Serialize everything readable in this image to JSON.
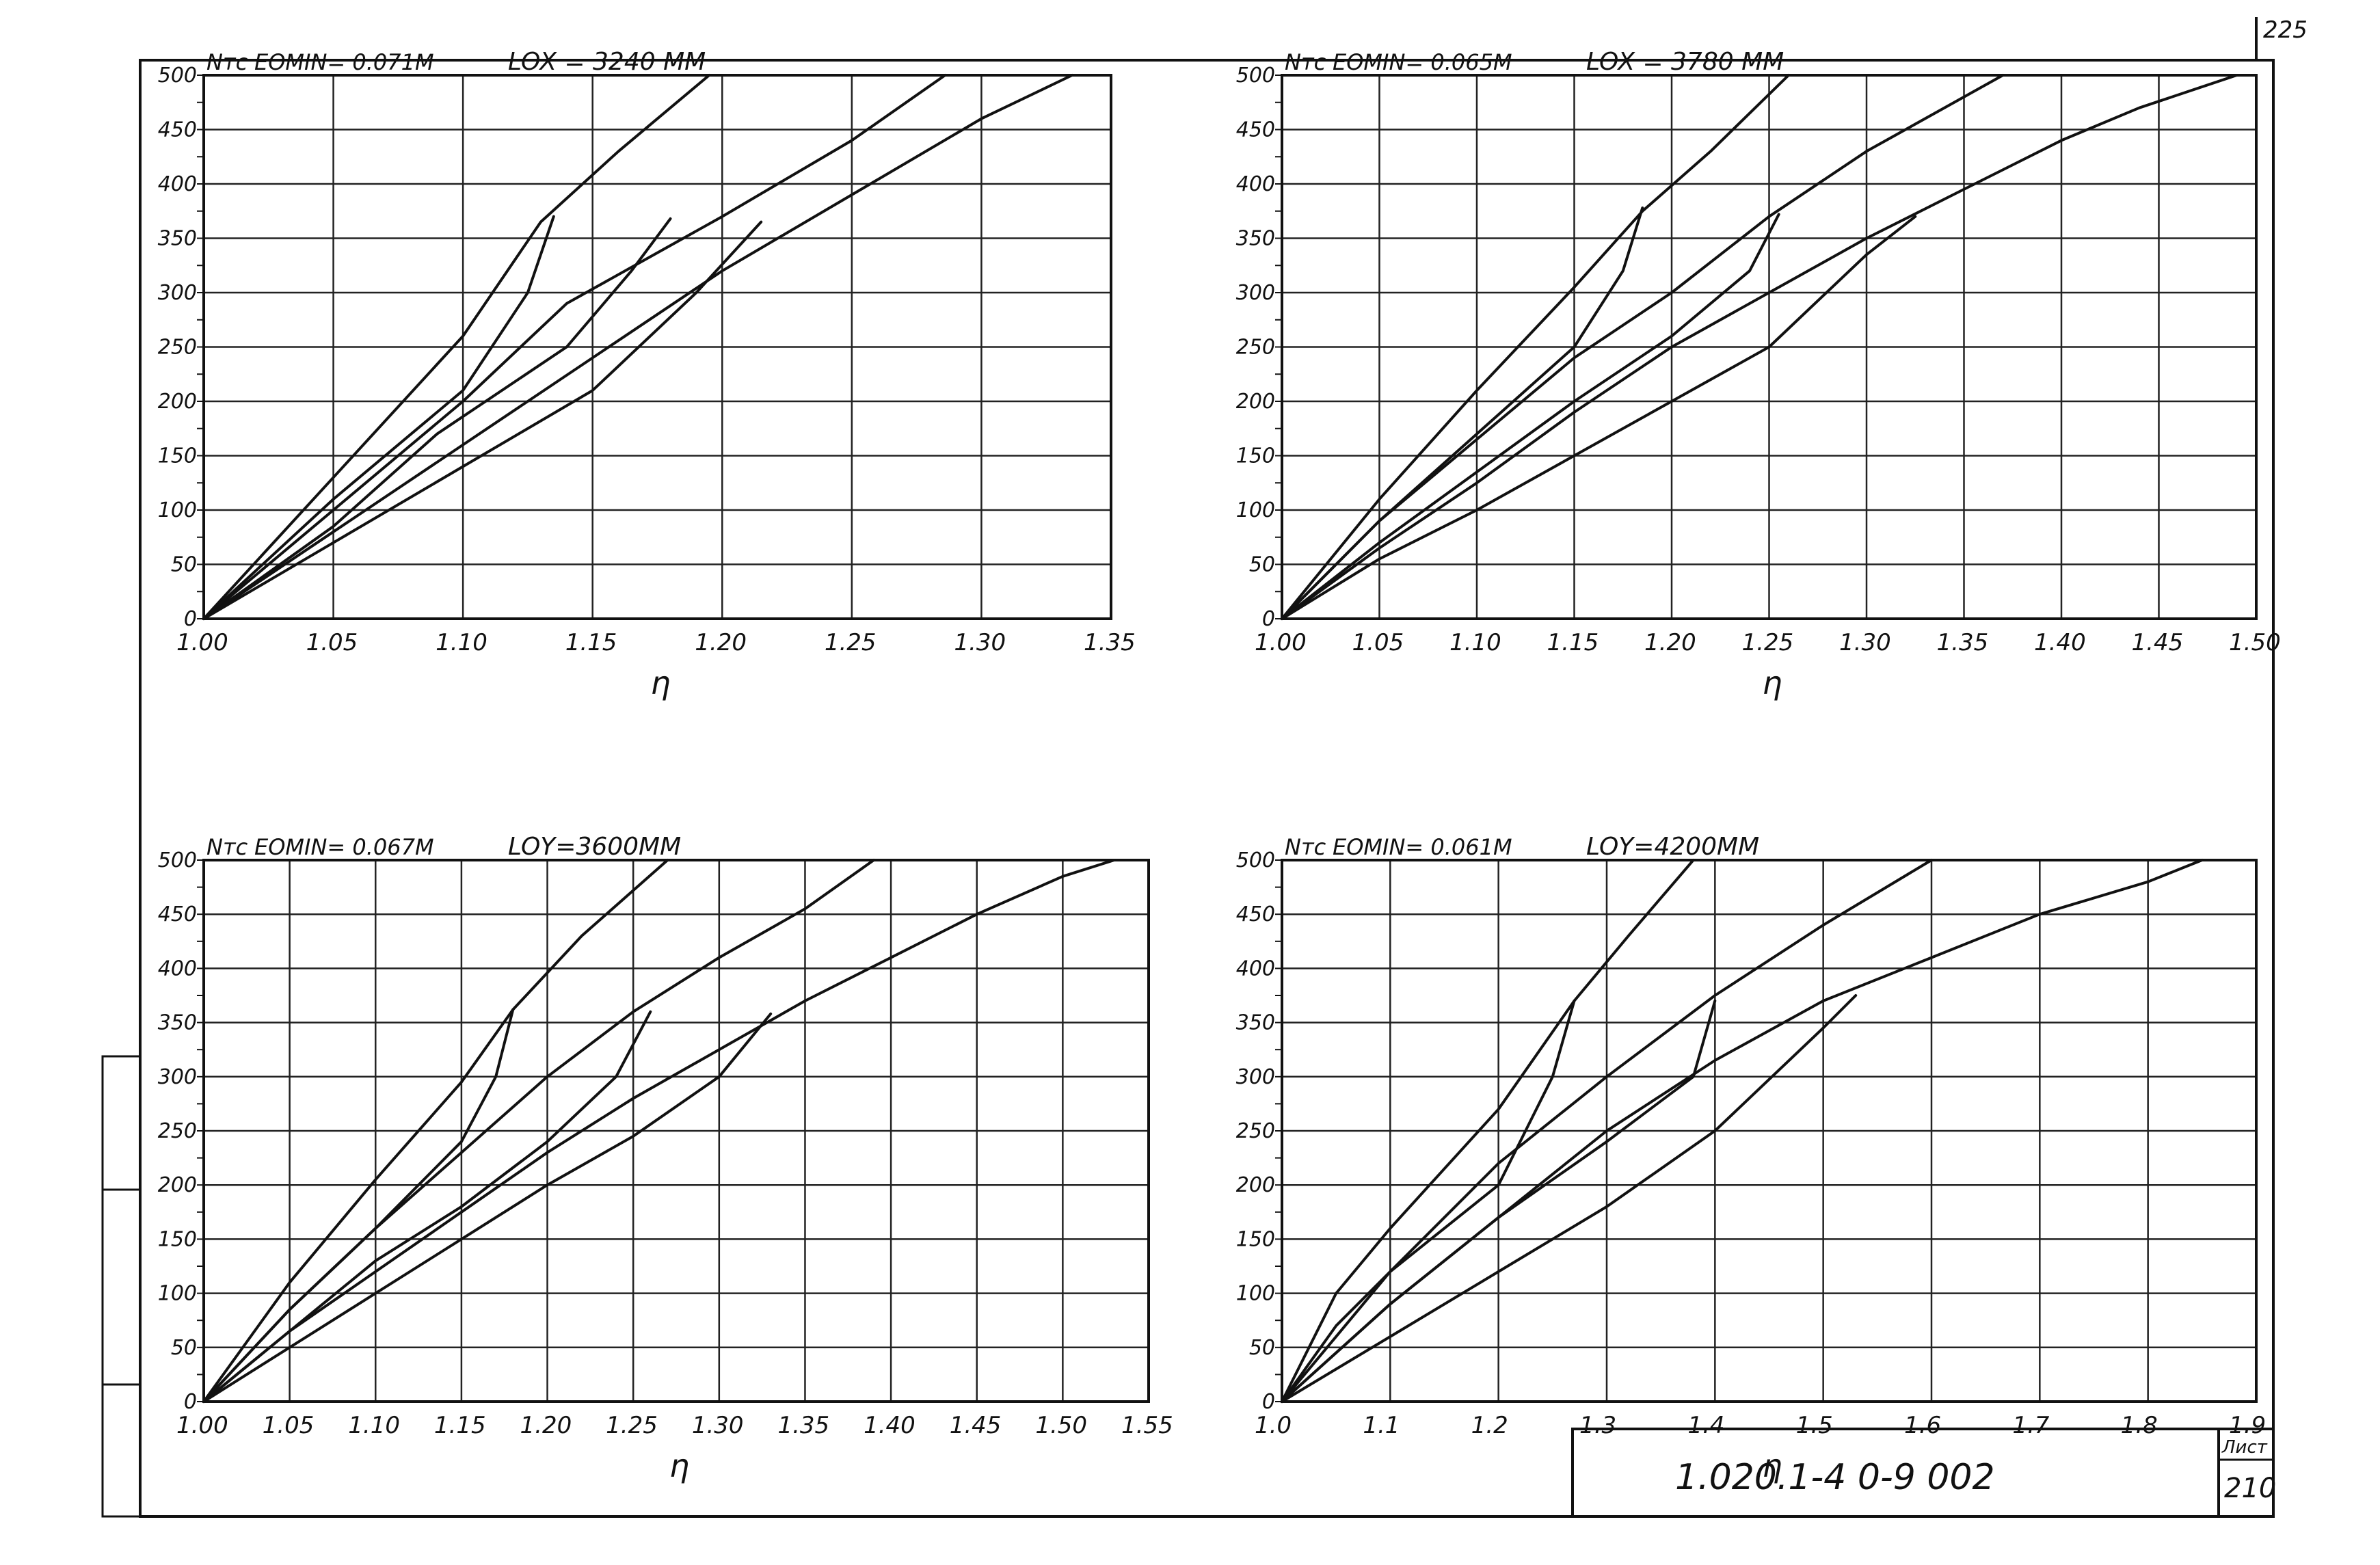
{
  "page_number_top": "225",
  "title_block": {
    "designation": "1.020.1-4  0-9  002",
    "sheet_label": "Лист",
    "sheet_number": "210"
  },
  "chart_data": [
    {
      "type": "line",
      "ylabel": "Nтс",
      "header_e": "EOMIN= 0.071M",
      "header_l": "LOX = 3240 MM",
      "xlabel": "η",
      "xlim": [
        1.0,
        1.35
      ],
      "ylim": [
        0,
        500
      ],
      "x_ticks": [
        1.0,
        1.05,
        1.1,
        1.15,
        1.2,
        1.25,
        1.3,
        1.35
      ],
      "x_tick_labels": [
        "1.00",
        "1.05",
        "1.10",
        "1.15",
        "1.20",
        "1.25",
        "1.30",
        "1.35"
      ],
      "y_ticks": [
        0,
        50,
        100,
        150,
        200,
        250,
        300,
        350,
        400,
        450,
        500
      ],
      "y_tick_labels": [
        "0",
        "50",
        "100",
        "150",
        "200",
        "250",
        "300",
        "350",
        "400",
        "450",
        "500"
      ],
      "series": [
        {
          "points": [
            [
              1.0,
              0
            ],
            [
              1.05,
              130
            ],
            [
              1.1,
              260
            ],
            [
              1.13,
              365
            ],
            [
              1.16,
              430
            ],
            [
              1.195,
              500
            ]
          ]
        },
        {
          "points": [
            [
              1.0,
              0
            ],
            [
              1.05,
              100
            ],
            [
              1.1,
              200
            ],
            [
              1.14,
              290
            ],
            [
              1.2,
              370
            ],
            [
              1.25,
              440
            ],
            [
              1.286,
              500
            ]
          ]
        },
        {
          "points": [
            [
              1.0,
              0
            ],
            [
              1.05,
              80
            ],
            [
              1.1,
              160
            ],
            [
              1.15,
              240
            ],
            [
              1.2,
              320
            ],
            [
              1.25,
              390
            ],
            [
              1.3,
              460
            ],
            [
              1.335,
              500
            ]
          ]
        },
        {
          "points": [
            [
              1.0,
              0
            ],
            [
              1.05,
              70
            ],
            [
              1.1,
              140
            ],
            [
              1.15,
              210
            ],
            [
              1.19,
              300
            ],
            [
              1.215,
              365
            ]
          ]
        },
        {
          "points": [
            [
              1.0,
              0
            ],
            [
              1.05,
              85
            ],
            [
              1.09,
              170
            ],
            [
              1.14,
              250
            ],
            [
              1.165,
              320
            ],
            [
              1.18,
              368
            ]
          ]
        },
        {
          "points": [
            [
              1.0,
              0
            ],
            [
              1.05,
              110
            ],
            [
              1.1,
              210
            ],
            [
              1.125,
              300
            ],
            [
              1.135,
              370
            ]
          ]
        }
      ]
    },
    {
      "type": "line",
      "ylabel": "Nтс",
      "header_e": "EOMIN= 0.065M",
      "header_l": "LOX = 3780 MM",
      "xlabel": "η",
      "xlim": [
        1.0,
        1.5
      ],
      "ylim": [
        0,
        500
      ],
      "x_ticks": [
        1.0,
        1.05,
        1.1,
        1.15,
        1.2,
        1.25,
        1.3,
        1.35,
        1.4,
        1.45,
        1.5
      ],
      "x_tick_labels": [
        "1.00",
        "1.05",
        "1.10",
        "1.15",
        "1.20",
        "1.25",
        "1.30",
        "1.35",
        "1.40",
        "1.45",
        "1.50"
      ],
      "y_ticks": [
        0,
        50,
        100,
        150,
        200,
        250,
        300,
        350,
        400,
        450,
        500
      ],
      "y_tick_labels": [
        "0",
        "50",
        "100",
        "150",
        "200",
        "250",
        "300",
        "350",
        "400",
        "450",
        "500"
      ],
      "series": [
        {
          "points": [
            [
              1.0,
              0
            ],
            [
              1.05,
              110
            ],
            [
              1.1,
              210
            ],
            [
              1.15,
              305
            ],
            [
              1.185,
              375
            ],
            [
              1.22,
              430
            ],
            [
              1.26,
              500
            ]
          ]
        },
        {
          "points": [
            [
              1.0,
              0
            ],
            [
              1.05,
              90
            ],
            [
              1.1,
              165
            ],
            [
              1.15,
              240
            ],
            [
              1.2,
              300
            ],
            [
              1.25,
              370
            ],
            [
              1.3,
              430
            ],
            [
              1.37,
              500
            ]
          ]
        },
        {
          "points": [
            [
              1.0,
              0
            ],
            [
              1.05,
              65
            ],
            [
              1.1,
              125
            ],
            [
              1.15,
              190
            ],
            [
              1.2,
              250
            ],
            [
              1.25,
              300
            ],
            [
              1.3,
              350
            ],
            [
              1.35,
              395
            ],
            [
              1.4,
              440
            ],
            [
              1.44,
              470
            ],
            [
              1.49,
              500
            ]
          ]
        },
        {
          "points": [
            [
              1.0,
              0
            ],
            [
              1.05,
              55
            ],
            [
              1.1,
              100
            ],
            [
              1.15,
              150
            ],
            [
              1.2,
              200
            ],
            [
              1.25,
              250
            ],
            [
              1.3,
              335
            ],
            [
              1.325,
              370
            ]
          ]
        },
        {
          "points": [
            [
              1.0,
              0
            ],
            [
              1.05,
              70
            ],
            [
              1.1,
              135
            ],
            [
              1.15,
              200
            ],
            [
              1.2,
              260
            ],
            [
              1.24,
              320
            ],
            [
              1.255,
              372
            ]
          ]
        },
        {
          "points": [
            [
              1.0,
              0
            ],
            [
              1.05,
              90
            ],
            [
              1.1,
              170
            ],
            [
              1.15,
              250
            ],
            [
              1.175,
              320
            ],
            [
              1.185,
              378
            ]
          ]
        }
      ]
    },
    {
      "type": "line",
      "ylabel": "Nтс",
      "header_e": "EOMIN= 0.067M",
      "header_l": "LOY=3600MM",
      "xlabel": "η",
      "xlim": [
        1.0,
        1.55
      ],
      "ylim": [
        0,
        500
      ],
      "x_ticks": [
        1.0,
        1.05,
        1.1,
        1.15,
        1.2,
        1.25,
        1.3,
        1.35,
        1.4,
        1.45,
        1.5,
        1.55
      ],
      "x_tick_labels": [
        "1.00",
        "1.05",
        "1.10",
        "1.15",
        "1.20",
        "1.25",
        "1.30",
        "1.35",
        "1.40",
        "1.45",
        "1.50",
        "1.55"
      ],
      "y_ticks": [
        0,
        50,
        100,
        150,
        200,
        250,
        300,
        350,
        400,
        450,
        500
      ],
      "y_tick_labels": [
        "0",
        "50",
        "100",
        "150",
        "200",
        "250",
        "300",
        "350",
        "400",
        "450",
        "500"
      ],
      "series": [
        {
          "points": [
            [
              1.0,
              0
            ],
            [
              1.05,
              110
            ],
            [
              1.1,
              205
            ],
            [
              1.15,
              295
            ],
            [
              1.18,
              362
            ],
            [
              1.22,
              430
            ],
            [
              1.27,
              500
            ]
          ]
        },
        {
          "points": [
            [
              1.0,
              0
            ],
            [
              1.05,
              85
            ],
            [
              1.1,
              160
            ],
            [
              1.15,
              230
            ],
            [
              1.2,
              300
            ],
            [
              1.25,
              360
            ],
            [
              1.3,
              410
            ],
            [
              1.35,
              455
            ],
            [
              1.39,
              500
            ]
          ]
        },
        {
          "points": [
            [
              1.0,
              0
            ],
            [
              1.05,
              65
            ],
            [
              1.1,
              120
            ],
            [
              1.15,
              175
            ],
            [
              1.2,
              230
            ],
            [
              1.25,
              280
            ],
            [
              1.3,
              325
            ],
            [
              1.35,
              370
            ],
            [
              1.4,
              410
            ],
            [
              1.45,
              450
            ],
            [
              1.5,
              485
            ],
            [
              1.53,
              500
            ]
          ]
        },
        {
          "points": [
            [
              1.0,
              0
            ],
            [
              1.05,
              50
            ],
            [
              1.1,
              100
            ],
            [
              1.15,
              150
            ],
            [
              1.2,
              200
            ],
            [
              1.25,
              245
            ],
            [
              1.3,
              300
            ],
            [
              1.33,
              358
            ]
          ]
        },
        {
          "points": [
            [
              1.0,
              0
            ],
            [
              1.05,
              65
            ],
            [
              1.1,
              130
            ],
            [
              1.15,
              180
            ],
            [
              1.2,
              240
            ],
            [
              1.24,
              300
            ],
            [
              1.26,
              360
            ]
          ]
        },
        {
          "points": [
            [
              1.0,
              0
            ],
            [
              1.05,
              85
            ],
            [
              1.1,
              160
            ],
            [
              1.15,
              240
            ],
            [
              1.17,
              300
            ],
            [
              1.18,
              362
            ]
          ]
        }
      ]
    },
    {
      "type": "line",
      "ylabel": "Nтс",
      "header_e": "EOMIN= 0.061M",
      "header_l": "LOY=4200MM",
      "xlabel": "η",
      "xlim": [
        1.0,
        1.9
      ],
      "ylim": [
        0,
        500
      ],
      "x_ticks": [
        1.0,
        1.1,
        1.2,
        1.3,
        1.4,
        1.5,
        1.6,
        1.7,
        1.8,
        1.9
      ],
      "x_tick_labels": [
        "1.0",
        "1.1",
        "1.2",
        "1.3",
        "1.4",
        "1.5",
        "1.6",
        "1.7",
        "1.8",
        "1.9"
      ],
      "y_ticks": [
        0,
        50,
        100,
        150,
        200,
        250,
        300,
        350,
        400,
        450,
        500
      ],
      "y_tick_labels": [
        "0",
        "50",
        "100",
        "150",
        "200",
        "250",
        "300",
        "350",
        "400",
        "450",
        "500"
      ],
      "series": [
        {
          "points": [
            [
              1.0,
              0
            ],
            [
              1.05,
              100
            ],
            [
              1.1,
              160
            ],
            [
              1.2,
              270
            ],
            [
              1.27,
              370
            ],
            [
              1.32,
              430
            ],
            [
              1.38,
              500
            ]
          ]
        },
        {
          "points": [
            [
              1.0,
              0
            ],
            [
              1.1,
              120
            ],
            [
              1.2,
              220
            ],
            [
              1.3,
              300
            ],
            [
              1.4,
              375
            ],
            [
              1.5,
              440
            ],
            [
              1.6,
              500
            ]
          ]
        },
        {
          "points": [
            [
              1.0,
              0
            ],
            [
              1.1,
              90
            ],
            [
              1.2,
              170
            ],
            [
              1.3,
              250
            ],
            [
              1.4,
              315
            ],
            [
              1.5,
              370
            ],
            [
              1.6,
              410
            ],
            [
              1.7,
              450
            ],
            [
              1.8,
              480
            ],
            [
              1.85,
              500
            ]
          ]
        },
        {
          "points": [
            [
              1.0,
              0
            ],
            [
              1.1,
              60
            ],
            [
              1.2,
              120
            ],
            [
              1.3,
              180
            ],
            [
              1.4,
              250
            ],
            [
              1.5,
              345
            ],
            [
              1.53,
              375
            ]
          ]
        },
        {
          "points": [
            [
              1.0,
              0
            ],
            [
              1.1,
              90
            ],
            [
              1.2,
              170
            ],
            [
              1.3,
              240
            ],
            [
              1.38,
              300
            ],
            [
              1.4,
              370
            ]
          ]
        },
        {
          "points": [
            [
              1.0,
              0
            ],
            [
              1.05,
              70
            ],
            [
              1.1,
              120
            ],
            [
              1.2,
              200
            ],
            [
              1.25,
              300
            ],
            [
              1.27,
              370
            ]
          ]
        }
      ]
    }
  ]
}
